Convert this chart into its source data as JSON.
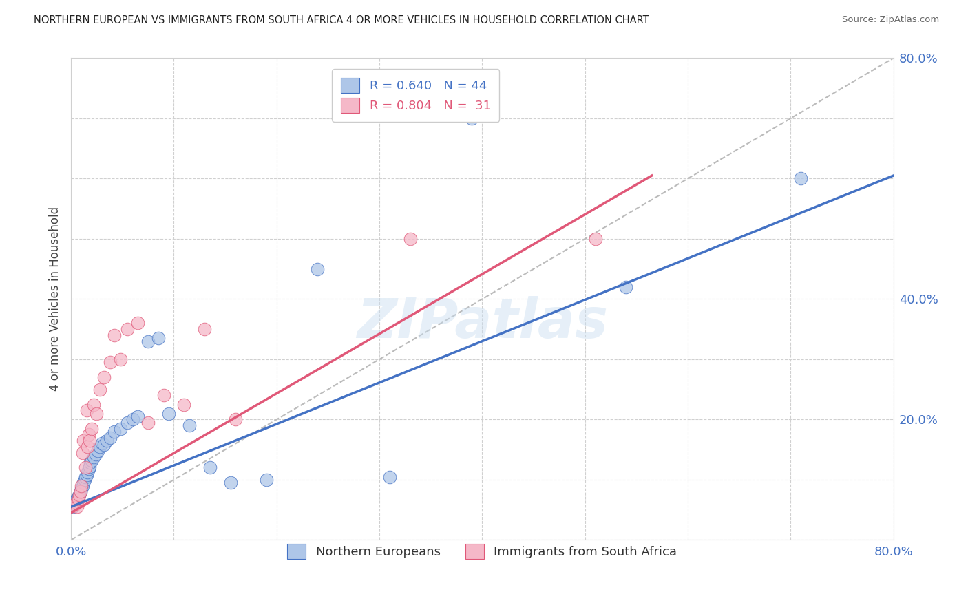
{
  "title": "NORTHERN EUROPEAN VS IMMIGRANTS FROM SOUTH AFRICA 4 OR MORE VEHICLES IN HOUSEHOLD CORRELATION CHART",
  "source": "Source: ZipAtlas.com",
  "ylabel": "4 or more Vehicles in Household",
  "xlim": [
    0.0,
    0.8
  ],
  "ylim": [
    0.0,
    0.8
  ],
  "blue_R": 0.64,
  "blue_N": 44,
  "pink_R": 0.804,
  "pink_N": 31,
  "blue_color": "#aec6e8",
  "pink_color": "#f5b8c8",
  "blue_line_color": "#4472C4",
  "pink_line_color": "#E05878",
  "diagonal_color": "#bbbbbb",
  "watermark": "ZIPatlas",
  "blue_scatter_x": [
    0.002,
    0.003,
    0.004,
    0.005,
    0.006,
    0.007,
    0.008,
    0.009,
    0.01,
    0.011,
    0.012,
    0.013,
    0.014,
    0.015,
    0.016,
    0.017,
    0.018,
    0.019,
    0.02,
    0.022,
    0.024,
    0.026,
    0.028,
    0.03,
    0.032,
    0.035,
    0.038,
    0.042,
    0.048,
    0.055,
    0.06,
    0.065,
    0.075,
    0.085,
    0.095,
    0.115,
    0.135,
    0.155,
    0.19,
    0.24,
    0.31,
    0.39,
    0.54,
    0.71
  ],
  "blue_scatter_y": [
    0.055,
    0.06,
    0.065,
    0.068,
    0.07,
    0.072,
    0.075,
    0.08,
    0.085,
    0.09,
    0.095,
    0.1,
    0.105,
    0.108,
    0.112,
    0.118,
    0.122,
    0.128,
    0.132,
    0.138,
    0.142,
    0.148,
    0.155,
    0.16,
    0.158,
    0.165,
    0.17,
    0.18,
    0.185,
    0.195,
    0.2,
    0.205,
    0.33,
    0.335,
    0.21,
    0.19,
    0.12,
    0.095,
    0.1,
    0.45,
    0.105,
    0.7,
    0.42,
    0.6
  ],
  "pink_scatter_x": [
    0.003,
    0.005,
    0.006,
    0.007,
    0.008,
    0.009,
    0.01,
    0.011,
    0.012,
    0.014,
    0.015,
    0.016,
    0.017,
    0.018,
    0.02,
    0.022,
    0.025,
    0.028,
    0.032,
    0.038,
    0.042,
    0.048,
    0.055,
    0.065,
    0.075,
    0.09,
    0.11,
    0.13,
    0.16,
    0.33,
    0.51
  ],
  "pink_scatter_y": [
    0.058,
    0.062,
    0.055,
    0.068,
    0.075,
    0.08,
    0.09,
    0.145,
    0.165,
    0.12,
    0.215,
    0.155,
    0.175,
    0.165,
    0.185,
    0.225,
    0.21,
    0.25,
    0.27,
    0.295,
    0.34,
    0.3,
    0.35,
    0.36,
    0.195,
    0.24,
    0.225,
    0.35,
    0.2,
    0.5,
    0.5
  ],
  "background_color": "#ffffff",
  "grid_color": "#d0d0d0",
  "blue_line_x": [
    0.0,
    0.8
  ],
  "blue_line_y": [
    0.055,
    0.605
  ],
  "pink_line_x": [
    0.0,
    0.565
  ],
  "pink_line_y": [
    0.045,
    0.605
  ]
}
